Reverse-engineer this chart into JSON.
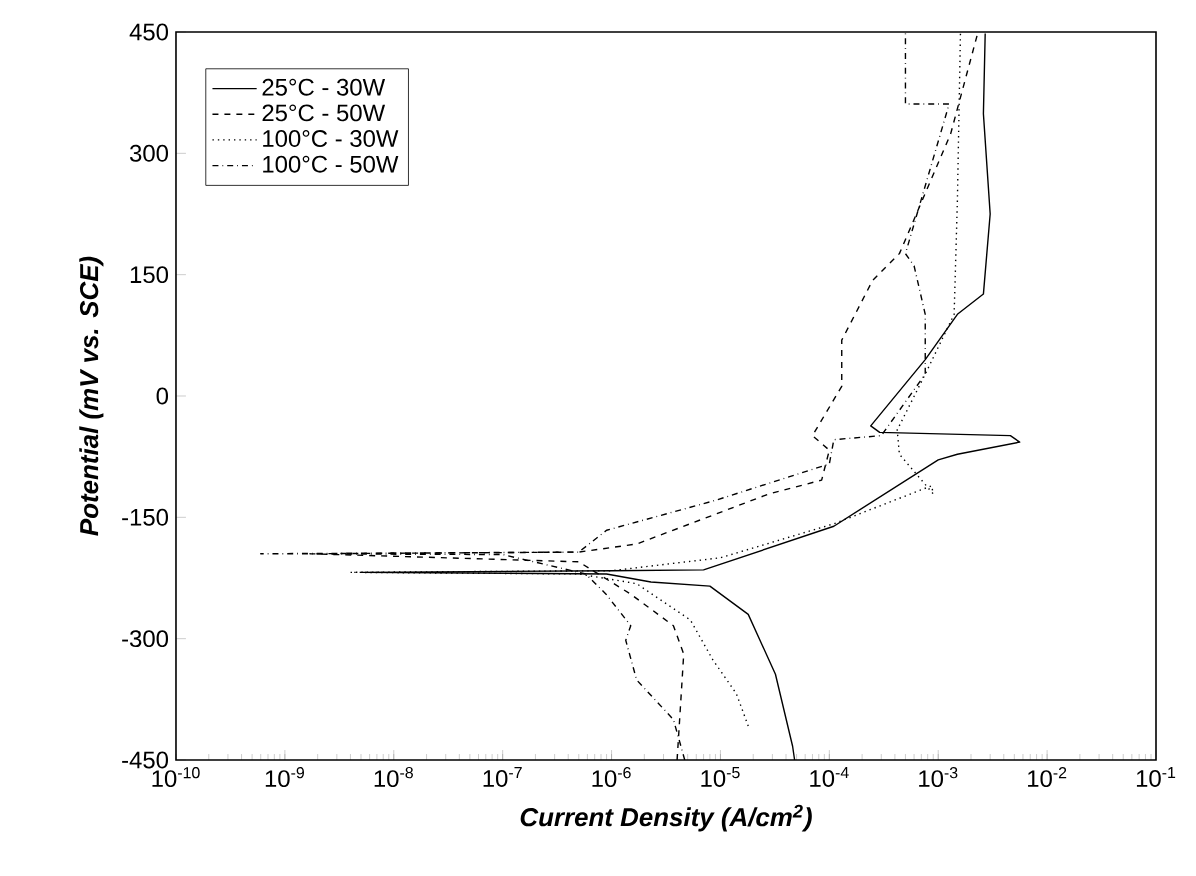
{
  "chart_data": {
    "type": "line",
    "xlabel": "Current Density (A/cm$^{2}$)",
    "ylabel": "Potential (mV vs. SCE)",
    "log": "x",
    "xlim": [
      1e-10,
      0.1
    ],
    "ylim": [
      -450,
      450
    ],
    "xticks": [
      {
        "value": 1e-10,
        "label": "10$^{-10}$"
      },
      {
        "value": 1e-09,
        "label": "10$^{-9}$"
      },
      {
        "value": 1e-08,
        "label": "10$^{-8}$"
      },
      {
        "value": 1e-07,
        "label": "10$^{-7}$"
      },
      {
        "value": 1e-06,
        "label": "10$^{-6}$"
      },
      {
        "value": 1e-05,
        "label": "10$^{-5}$"
      },
      {
        "value": 0.0001,
        "label": "10$^{-4}$"
      },
      {
        "value": 0.001,
        "label": "10$^{-3}$"
      },
      {
        "value": 0.01,
        "label": "10$^{-2}$"
      },
      {
        "value": 0.1,
        "label": "10$^{-1}$"
      }
    ],
    "yticks": [
      -450,
      -300,
      -150,
      0,
      150,
      300,
      450
    ],
    "legend": "top left",
    "grid": false,
    "marker": "none",
    "series": [
      {
        "name": "25°C - 30W",
        "color": "#000000",
        "line_style": "solid",
        "x": [
          4.8e-05,
          4.6e-05,
          3.2e-05,
          1.8e-05,
          8e-06,
          2.3e-06,
          9e-07,
          5e-09,
          1e-06,
          7e-06,
          0.00011,
          0.001,
          0.0015,
          0.0056,
          0.0046,
          0.00029,
          0.00024,
          0.00076,
          0.0015,
          0.0026,
          0.003,
          0.0026,
          0.0027
        ],
        "values": [
          -450,
          -433,
          -344,
          -270,
          -235,
          -230,
          -220,
          -218,
          -216,
          -215,
          -161,
          -79,
          -72,
          -57,
          -49,
          -45,
          -37,
          45,
          101,
          126,
          225,
          349,
          448
        ]
      },
      {
        "name": "25°C - 50W",
        "color": "#000000",
        "line_style": "dashed",
        "x": [
          4e-06,
          4.6e-06,
          3.7e-06,
          1.5e-06,
          5e-07,
          1.7e-09,
          5e-07,
          1.7e-06,
          2.8e-05,
          8.5e-05,
          0.0001,
          7e-05,
          0.00013,
          0.00013,
          0.00025,
          0.00044,
          0.0013,
          0.0023
        ],
        "values": [
          -450,
          -319,
          -284,
          -245,
          -205,
          -195,
          -193,
          -183,
          -121,
          -104,
          -67,
          -49,
          12,
          69,
          143,
          176,
          324,
          448
        ]
      },
      {
        "name": "100°C - 30W",
        "color": "#000000",
        "line_style": "dotted",
        "x": [
          1.8e-05,
          1.4e-05,
          8.5e-06,
          5.3e-06,
          1.7e-06,
          5e-07,
          4e-09,
          1e-06,
          1e-05,
          0.00011,
          0.00087,
          0.0009,
          0.00044,
          0.00042,
          0.00076,
          0.0014,
          0.0015,
          0.0016
        ],
        "values": [
          -408,
          -368,
          -326,
          -277,
          -232,
          -220,
          -218,
          -216,
          -200,
          -158,
          -111,
          -121,
          -72,
          -42,
          27,
          101,
          242,
          448
        ]
      },
      {
        "name": "100°C - 50W",
        "color": "#000000",
        "line_style": "dashdot",
        "x": [
          4.7e-06,
          3.7e-06,
          1.7e-06,
          1.35e-06,
          1.5e-06,
          8.9e-07,
          5.8e-07,
          1e-07,
          6e-10,
          5e-07,
          9e-07,
          9e-06,
          0.0001,
          0.00011,
          0.0003,
          0.00076,
          0.00076,
          0.0006,
          0.0005,
          0.00126,
          0.0005,
          0.0005
        ],
        "values": [
          -450,
          -400,
          -351,
          -302,
          -284,
          -245,
          -220,
          -196,
          -195,
          -193,
          -166,
          -129,
          -84,
          -54,
          -49,
          27,
          101,
          161,
          176,
          361,
          361,
          450
        ]
      }
    ]
  }
}
